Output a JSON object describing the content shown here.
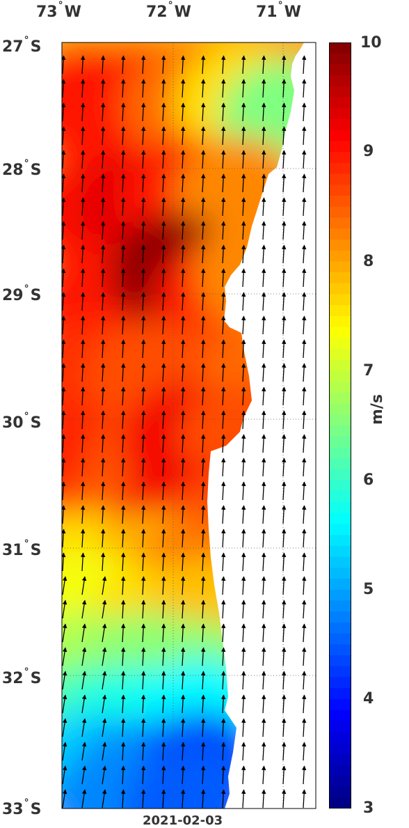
{
  "map": {
    "date": "2021-02-03",
    "lon_labels": [
      {
        "deg": "73",
        "hemi": "W"
      },
      {
        "deg": "72",
        "hemi": "W"
      },
      {
        "deg": "71",
        "hemi": "W"
      }
    ],
    "lat_labels": [
      {
        "deg": "27",
        "hemi": "S"
      },
      {
        "deg": "28",
        "hemi": "S"
      },
      {
        "deg": "29",
        "hemi": "S"
      },
      {
        "deg": "30",
        "hemi": "S"
      },
      {
        "deg": "31",
        "hemi": "S"
      },
      {
        "deg": "32",
        "hemi": "S"
      },
      {
        "deg": "33",
        "hemi": "S"
      }
    ],
    "land_color": "#ffffff",
    "arrow_color": "#000000"
  },
  "colorbar": {
    "unit": "m/s",
    "min": 3,
    "max": 10,
    "ticks": [
      "10",
      "9",
      "8",
      "7",
      "6",
      "5",
      "4",
      "3"
    ],
    "colormap": "jet"
  }
}
